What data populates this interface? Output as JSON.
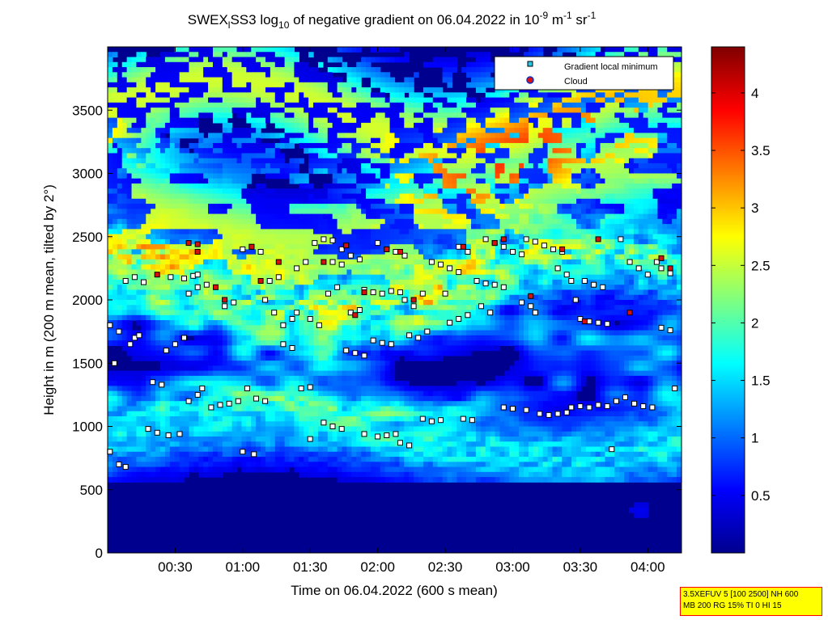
{
  "chart_data": {
    "type": "heatmap",
    "title": {
      "prefix": "SWEX",
      "sub1": "l",
      "mid": "SS3 log",
      "sub2": "10",
      "rest": " of negative gradient on 06.04.2022 in 10",
      "sup1": "-9",
      "unit1": " m",
      "sup2": "-1",
      "unit2": " sr",
      "sup3": "-1"
    },
    "xlabel": "Time on 06.04.2022 (600 s mean)",
    "ylabel": "Height in m (200 m mean, tilted by 2°)",
    "xlim": [
      0,
      255
    ],
    "ylim": [
      0,
      4000
    ],
    "x_ticks": [
      {
        "min": 30,
        "label": "00:30"
      },
      {
        "min": 60,
        "label": "01:00"
      },
      {
        "min": 90,
        "label": "01:30"
      },
      {
        "min": 120,
        "label": "02:00"
      },
      {
        "min": 150,
        "label": "02:30"
      },
      {
        "min": 180,
        "label": "03:00"
      },
      {
        "min": 210,
        "label": "03:30"
      },
      {
        "min": 240,
        "label": "04:00"
      }
    ],
    "y_ticks": [
      0,
      500,
      1000,
      1500,
      2000,
      2500,
      3000,
      3500
    ],
    "colorbar": {
      "range": [
        0,
        4.4
      ],
      "ticks": [
        0.5,
        1,
        1.5,
        2,
        2.5,
        3,
        3.5,
        4
      ]
    },
    "legend": {
      "position": "top-right",
      "entries": [
        {
          "label": "Gradient local minimum",
          "marker": "square",
          "color": "#22c8e6"
        },
        {
          "label": "Cloud",
          "marker": "circle",
          "color": "#e01010",
          "edge": "#1030c0"
        }
      ]
    },
    "series": [
      {
        "marker": "square",
        "points": [
          [
            1,
            1800
          ],
          [
            5,
            1750
          ],
          [
            3,
            1500
          ],
          [
            1,
            800
          ],
          [
            5,
            700
          ],
          [
            8,
            680
          ],
          [
            10,
            1650
          ],
          [
            12,
            1700
          ],
          [
            14,
            1720
          ],
          [
            8,
            2150
          ],
          [
            12,
            2180
          ],
          [
            16,
            2140
          ],
          [
            20,
            1350
          ],
          [
            24,
            1330
          ],
          [
            18,
            980
          ],
          [
            22,
            950
          ],
          [
            27,
            930
          ],
          [
            32,
            940
          ],
          [
            26,
            1600
          ],
          [
            30,
            1650
          ],
          [
            34,
            1700
          ],
          [
            28,
            2180
          ],
          [
            34,
            2170
          ],
          [
            38,
            2190
          ],
          [
            40,
            2200
          ],
          [
            36,
            1200
          ],
          [
            40,
            1250
          ],
          [
            42,
            1300
          ],
          [
            36,
            2050
          ],
          [
            40,
            2100
          ],
          [
            44,
            2120
          ],
          [
            46,
            1150
          ],
          [
            50,
            1170
          ],
          [
            54,
            1180
          ],
          [
            58,
            1200
          ],
          [
            52,
            1950
          ],
          [
            56,
            1980
          ],
          [
            62,
            1300
          ],
          [
            66,
            1220
          ],
          [
            70,
            1200
          ],
          [
            60,
            2400
          ],
          [
            64,
            2420
          ],
          [
            68,
            2380
          ],
          [
            72,
            2150
          ],
          [
            76,
            2180
          ],
          [
            78,
            1800
          ],
          [
            82,
            1850
          ],
          [
            84,
            1900
          ],
          [
            74,
            1900
          ],
          [
            60,
            800
          ],
          [
            65,
            780
          ],
          [
            78,
            1650
          ],
          [
            82,
            1620
          ],
          [
            86,
            1300
          ],
          [
            90,
            1310
          ],
          [
            84,
            2250
          ],
          [
            88,
            2300
          ],
          [
            92,
            2450
          ],
          [
            96,
            2480
          ],
          [
            100,
            2470
          ],
          [
            104,
            2400
          ],
          [
            90,
            1850
          ],
          [
            94,
            1800
          ],
          [
            98,
            2050
          ],
          [
            102,
            2100
          ],
          [
            106,
            1600
          ],
          [
            110,
            1580
          ],
          [
            114,
            1560
          ],
          [
            96,
            1030
          ],
          [
            100,
            1000
          ],
          [
            104,
            980
          ],
          [
            108,
            1900
          ],
          [
            112,
            1920
          ],
          [
            100,
            2300
          ],
          [
            104,
            2280
          ],
          [
            108,
            2350
          ],
          [
            112,
            2320
          ],
          [
            114,
            2080
          ],
          [
            118,
            2060
          ],
          [
            122,
            2050
          ],
          [
            126,
            2070
          ],
          [
            130,
            2060
          ],
          [
            118,
            1680
          ],
          [
            122,
            1660
          ],
          [
            126,
            1650
          ],
          [
            114,
            940
          ],
          [
            120,
            920
          ],
          [
            124,
            930
          ],
          [
            128,
            940
          ],
          [
            120,
            2450
          ],
          [
            124,
            2400
          ],
          [
            128,
            2380
          ],
          [
            132,
            2350
          ],
          [
            134,
            1720
          ],
          [
            138,
            1700
          ],
          [
            142,
            1750
          ],
          [
            130,
            870
          ],
          [
            134,
            850
          ],
          [
            132,
            2000
          ],
          [
            136,
            1950
          ],
          [
            140,
            2050
          ],
          [
            140,
            1060
          ],
          [
            144,
            1040
          ],
          [
            148,
            1050
          ],
          [
            144,
            2300
          ],
          [
            148,
            2280
          ],
          [
            152,
            2250
          ],
          [
            156,
            2220
          ],
          [
            150,
            2050
          ],
          [
            152,
            1820
          ],
          [
            156,
            1850
          ],
          [
            160,
            1880
          ],
          [
            158,
            1060
          ],
          [
            162,
            1050
          ],
          [
            156,
            2420
          ],
          [
            160,
            2380
          ],
          [
            164,
            2150
          ],
          [
            168,
            2130
          ],
          [
            172,
            2120
          ],
          [
            176,
            2100
          ],
          [
            166,
            1950
          ],
          [
            170,
            1900
          ],
          [
            168,
            2480
          ],
          [
            172,
            2450
          ],
          [
            176,
            2420
          ],
          [
            180,
            2380
          ],
          [
            184,
            2360
          ],
          [
            176,
            1150
          ],
          [
            180,
            1140
          ],
          [
            186,
            1130
          ],
          [
            184,
            1980
          ],
          [
            188,
            1950
          ],
          [
            190,
            1900
          ],
          [
            186,
            2480
          ],
          [
            190,
            2460
          ],
          [
            194,
            2430
          ],
          [
            198,
            2400
          ],
          [
            202,
            2380
          ],
          [
            192,
            1100
          ],
          [
            196,
            1090
          ],
          [
            200,
            1100
          ],
          [
            204,
            1110
          ],
          [
            200,
            2250
          ],
          [
            204,
            2200
          ],
          [
            206,
            2150
          ],
          [
            208,
            2000
          ],
          [
            206,
            1150
          ],
          [
            210,
            1160
          ],
          [
            214,
            1150
          ],
          [
            218,
            1170
          ],
          [
            210,
            1850
          ],
          [
            214,
            1830
          ],
          [
            218,
            1820
          ],
          [
            222,
            1810
          ],
          [
            212,
            2150
          ],
          [
            216,
            2120
          ],
          [
            220,
            2100
          ],
          [
            222,
            1160
          ],
          [
            226,
            1200
          ],
          [
            230,
            1230
          ],
          [
            234,
            1180
          ],
          [
            238,
            1160
          ],
          [
            242,
            1150
          ],
          [
            228,
            2480
          ],
          [
            232,
            2300
          ],
          [
            236,
            2250
          ],
          [
            240,
            2200
          ],
          [
            244,
            2300
          ],
          [
            246,
            2250
          ],
          [
            250,
            2210
          ],
          [
            246,
            1780
          ],
          [
            250,
            1760
          ],
          [
            252,
            1300
          ],
          [
            224,
            820
          ],
          [
            90,
            900
          ],
          [
            70,
            2000
          ]
        ]
      },
      {
        "marker": "circle",
        "points": [
          [
            22,
            2200
          ],
          [
            36,
            2450
          ],
          [
            40,
            2380
          ],
          [
            48,
            2100
          ],
          [
            52,
            2000
          ],
          [
            64,
            2420
          ],
          [
            68,
            2150
          ],
          [
            76,
            2300
          ],
          [
            96,
            2300
          ],
          [
            106,
            2430
          ],
          [
            114,
            2060
          ],
          [
            124,
            2400
          ],
          [
            130,
            2380
          ],
          [
            136,
            2000
          ],
          [
            158,
            2420
          ],
          [
            172,
            2450
          ],
          [
            176,
            2480
          ],
          [
            188,
            2030
          ],
          [
            202,
            2400
          ],
          [
            212,
            1830
          ],
          [
            218,
            2480
          ],
          [
            232,
            1900
          ],
          [
            246,
            2330
          ],
          [
            250,
            2250
          ],
          [
            40,
            2440
          ],
          [
            110,
            1880
          ]
        ]
      }
    ]
  },
  "info_box": {
    "line1": "3.5XEFUV 5 [100 2500] NH 600",
    "line2": "MB 200 RG 15% TI 0 HI 15"
  }
}
